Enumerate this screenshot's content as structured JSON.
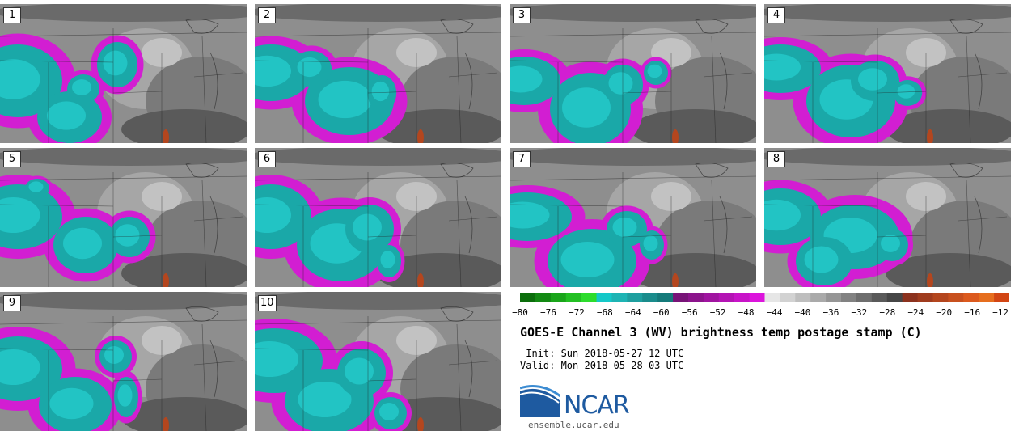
{
  "panels": [
    {
      "label": "1",
      "blobs": [
        [
          0,
          95,
          55,
          45
        ],
        [
          70,
          140,
          40,
          32
        ],
        [
          135,
          75,
          25,
          28
        ],
        [
          95,
          105,
          20,
          18
        ]
      ],
      "tealScale": 1.0
    },
    {
      "label": "2",
      "blobs": [
        [
          0,
          85,
          50,
          35
        ],
        [
          95,
          120,
          55,
          42
        ],
        [
          60,
          80,
          25,
          22
        ],
        [
          150,
          110,
          18,
          22
        ]
      ],
      "tealScale": 1.0
    },
    {
      "label": "3",
      "blobs": [
        [
          0,
          95,
          45,
          30
        ],
        [
          80,
          130,
          50,
          45
        ],
        [
          130,
          100,
          25,
          25
        ],
        [
          175,
          85,
          15,
          15
        ]
      ],
      "tealScale": 1.0
    },
    {
      "label": "4",
      "blobs": [
        [
          0,
          80,
          50,
          30
        ],
        [
          85,
          120,
          55,
          45
        ],
        [
          125,
          95,
          30,
          25
        ],
        [
          170,
          110,
          18,
          16
        ]
      ],
      "tealScale": 1.0
    },
    {
      "label": "5",
      "blobs": [
        [
          0,
          85,
          55,
          40
        ],
        [
          90,
          120,
          40,
          35
        ],
        [
          150,
          110,
          25,
          25
        ],
        [
          40,
          50,
          15,
          12
        ]
      ],
      "tealScale": 1.0
    },
    {
      "label": "6",
      "blobs": [
        [
          0,
          85,
          50,
          40
        ],
        [
          85,
          120,
          55,
          45
        ],
        [
          130,
          100,
          30,
          30
        ],
        [
          160,
          140,
          15,
          20
        ]
      ],
      "tealScale": 1.0
    },
    {
      "label": "7",
      "blobs": [
        [
          0,
          85,
          55,
          30
        ],
        [
          80,
          140,
          55,
          40
        ],
        [
          135,
          100,
          25,
          22
        ],
        [
          170,
          120,
          15,
          18
        ]
      ],
      "tealScale": 1.0
    },
    {
      "label": "8",
      "blobs": [
        [
          0,
          85,
          50,
          35
        ],
        [
          90,
          110,
          55,
          40
        ],
        [
          60,
          140,
          35,
          30
        ],
        [
          150,
          120,
          20,
          20
        ]
      ],
      "tealScale": 1.0
    },
    {
      "label": "9",
      "blobs": [
        [
          0,
          95,
          55,
          40
        ],
        [
          75,
          140,
          45,
          35
        ],
        [
          135,
          80,
          20,
          20
        ],
        [
          150,
          130,
          15,
          25
        ]
      ],
      "tealScale": 1.0
    },
    {
      "label": "10",
      "blobs": [
        [
          0,
          85,
          60,
          40
        ],
        [
          70,
          135,
          55,
          40
        ],
        [
          120,
          100,
          30,
          30
        ],
        [
          160,
          150,
          20,
          20
        ]
      ],
      "tealScale": 1.0
    }
  ],
  "colorbar": {
    "colors": [
      "#0b6e0b",
      "#138a13",
      "#1aa51a",
      "#23c023",
      "#2ddc2d",
      "#14c8c8",
      "#1eb4b4",
      "#1e9f9f",
      "#1a8c8c",
      "#157a7a",
      "#781478",
      "#8c148c",
      "#a014a0",
      "#b414b4",
      "#c814c8",
      "#dc14dc",
      "#e6e6e6",
      "#d2d2d2",
      "#bebebe",
      "#aaaaaa",
      "#969696",
      "#828282",
      "#6e6e6e",
      "#5a5a5a",
      "#464646",
      "#8c321e",
      "#a03c1e",
      "#b4461e",
      "#c8501e",
      "#dc5a1e",
      "#e66e1e",
      "#d24614"
    ],
    "ticks": [
      "−80",
      "−76",
      "−72",
      "−68",
      "−64",
      "−60",
      "−56",
      "−52",
      "−48",
      "−44",
      "−40",
      "−36",
      "−32",
      "−28",
      "−24",
      "−20",
      "−16",
      "−12"
    ]
  },
  "title": "GOES-E Channel 3 (WV) brightness temp postage stamp (C)",
  "init": " Init: Sun 2018-05-27 12 UTC",
  "valid": "Valid: Mon 2018-05-28 03 UTC",
  "logo_text": "NCAR",
  "site": "ensemble.ucar.edu"
}
